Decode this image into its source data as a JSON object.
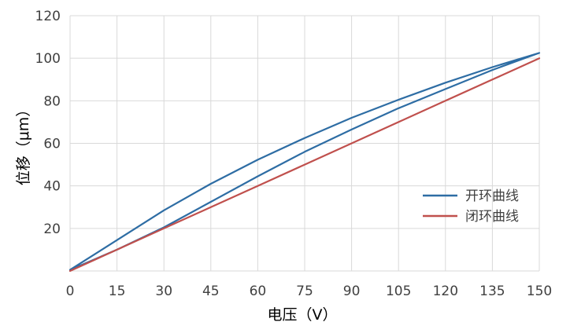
{
  "chart_data": {
    "type": "line",
    "xlabel": "电压（V）",
    "ylabel": "位移（μm）",
    "xlim": [
      0,
      150
    ],
    "ylim": [
      0,
      120
    ],
    "xticks": [
      0,
      15,
      30,
      45,
      60,
      75,
      90,
      105,
      120,
      135,
      150
    ],
    "yticks": [
      20,
      40,
      60,
      80,
      100,
      120
    ],
    "grid": true,
    "legend_position": "right",
    "series": [
      {
        "name": "开环曲线",
        "color": "#2e6da4",
        "values": [
          [
            0,
            0.5
          ],
          [
            15,
            14.5
          ],
          [
            30,
            28.5
          ],
          [
            45,
            41
          ],
          [
            60,
            52.3
          ],
          [
            75,
            62.5
          ],
          [
            90,
            72
          ],
          [
            105,
            80.5
          ],
          [
            120,
            88.5
          ],
          [
            135,
            95.8
          ],
          [
            150,
            102.5
          ],
          [
            135,
            94.5
          ],
          [
            120,
            85.5
          ],
          [
            105,
            76.5
          ],
          [
            90,
            66.5
          ],
          [
            75,
            56
          ],
          [
            60,
            44.5
          ],
          [
            45,
            32.5
          ],
          [
            30,
            20.5
          ],
          [
            15,
            10
          ],
          [
            0,
            0.5
          ]
        ]
      },
      {
        "name": "闭环曲线",
        "color": "#c0504d",
        "values": [
          [
            0,
            0
          ],
          [
            15,
            10
          ],
          [
            30,
            20
          ],
          [
            45,
            30
          ],
          [
            60,
            40
          ],
          [
            75,
            50
          ],
          [
            90,
            60
          ],
          [
            105,
            70
          ],
          [
            120,
            80
          ],
          [
            135,
            90
          ],
          [
            150,
            100
          ]
        ]
      }
    ]
  }
}
